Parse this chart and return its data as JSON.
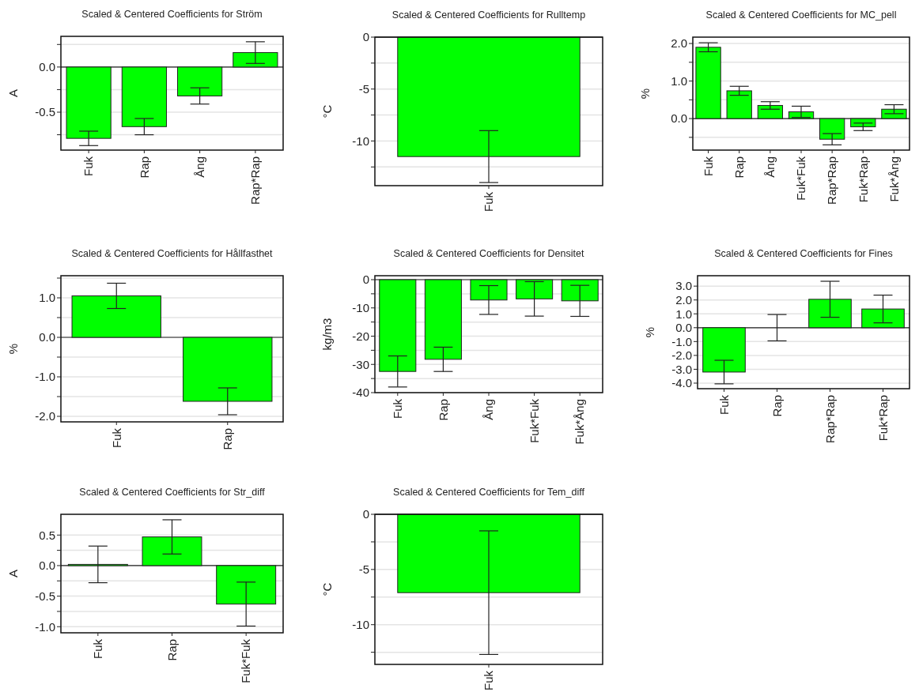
{
  "chart_data": [
    {
      "type": "bar",
      "title": "Scaled & Centered Coefficients for Ström",
      "ylabel": "A",
      "categories": [
        "Fuk",
        "Rap",
        "Ång",
        "Rap*Rap"
      ],
      "values": [
        -0.79,
        -0.66,
        -0.32,
        0.16
      ],
      "errors": [
        0.08,
        0.09,
        0.09,
        0.12
      ],
      "color": "#00ff00",
      "ylim": [
        -0.92,
        0.34
      ],
      "yticks": [
        {
          "value": 0.25,
          "label": null
        },
        {
          "value": 0,
          "label": "0.0"
        },
        {
          "value": -0.25,
          "label": null
        },
        -0.5,
        {
          "value": -0.75,
          "label": null
        }
      ],
      "grid": "y"
    },
    {
      "type": "bar",
      "title": "Scaled & Centered Coefficients for Rulltemp",
      "ylabel": "°C",
      "categories": [
        "Fuk"
      ],
      "values": [
        -11.5
      ],
      "errors": [
        2.5
      ],
      "color": "#00ff00",
      "ylim": [
        -14.3,
        0
      ],
      "yticks": [
        0,
        {
          "value": -2.5,
          "label": null
        },
        -5,
        {
          "value": -7.5,
          "label": null
        },
        -10,
        {
          "value": -12.5,
          "label": null
        }
      ],
      "grid": "y"
    },
    {
      "type": "bar",
      "title": "Scaled & Centered Coefficients for MC_pell",
      "ylabel": "%",
      "categories": [
        "Fuk",
        "Rap",
        "Ång",
        "Fuk*Fuk",
        "Rap*Rap",
        "Fuk*Rap",
        "Fuk*Ång"
      ],
      "values": [
        1.9,
        0.74,
        0.35,
        0.18,
        -0.55,
        -0.22,
        0.25
      ],
      "errors": [
        0.12,
        0.12,
        0.1,
        0.15,
        0.15,
        0.1,
        0.12
      ],
      "color": "#00ff00",
      "ylim": [
        -0.84,
        2.17
      ],
      "yticks": [
        {
          "value": 2,
          "label": "2.0"
        },
        {
          "value": 1.5,
          "label": null
        },
        {
          "value": 1,
          "label": "1.0"
        },
        {
          "value": 0.5,
          "label": null
        },
        {
          "value": 0,
          "label": "0.0"
        },
        {
          "value": -0.5,
          "label": null
        }
      ],
      "grid": "y"
    },
    {
      "type": "bar",
      "title": "Scaled & Centered Coefficients for Hållfasthet",
      "ylabel": "%",
      "categories": [
        "Fuk",
        "Rap"
      ],
      "values": [
        1.05,
        -1.62
      ],
      "errors": [
        0.32,
        0.34
      ],
      "color": "#00ff00",
      "ylim": [
        -2.14,
        1.56
      ],
      "yticks": [
        {
          "value": 1.5,
          "label": null
        },
        {
          "value": 1,
          "label": "1.0"
        },
        {
          "value": 0.5,
          "label": null
        },
        {
          "value": 0,
          "label": "0.0"
        },
        {
          "value": -0.5,
          "label": null
        },
        {
          "value": -1,
          "label": "-1.0"
        },
        {
          "value": -1.5,
          "label": null
        },
        {
          "value": -2,
          "label": "-2.0"
        }
      ],
      "grid": "y"
    },
    {
      "type": "bar",
      "title": "Scaled & Centered Coefficients for Densitet",
      "ylabel": "kg/m3",
      "categories": [
        "Fuk",
        "Rap",
        "Ång",
        "Fuk*Fuk",
        "Fuk*Ång"
      ],
      "values": [
        -32.5,
        -28.2,
        -7.2,
        -6.8,
        -7.5
      ],
      "errors": [
        5.5,
        4.3,
        5.1,
        6.1,
        5.5
      ],
      "color": "#00ff00",
      "ylim": [
        -40,
        1.4
      ],
      "yticks": [
        0,
        {
          "value": -5,
          "label": null
        },
        -10,
        {
          "value": -15,
          "label": null
        },
        -20,
        {
          "value": -25,
          "label": null
        },
        -30,
        {
          "value": -35,
          "label": null
        },
        -40
      ],
      "grid": "y"
    },
    {
      "type": "bar",
      "title": "Scaled & Centered Coefficients for Fines",
      "ylabel": "%",
      "categories": [
        "Fuk",
        "Rap",
        "Rap*Rap",
        "Fuk*Rap"
      ],
      "values": [
        -3.2,
        0,
        2.05,
        1.35
      ],
      "errors": [
        0.85,
        0.95,
        1.3,
        1.0
      ],
      "color": "#00ff00",
      "ylim": [
        -4.4,
        3.75
      ],
      "yticks": [
        {
          "value": 3,
          "label": "3.0"
        },
        {
          "value": 2,
          "label": "2.0"
        },
        {
          "value": 1,
          "label": "1.0"
        },
        {
          "value": 0,
          "label": "0.0"
        },
        {
          "value": -1,
          "label": "-1.0"
        },
        {
          "value": -2,
          "label": "-2.0"
        },
        {
          "value": -3,
          "label": "-3.0"
        },
        {
          "value": -4,
          "label": "-4.0"
        }
      ],
      "grid": "y"
    },
    {
      "type": "bar",
      "title": "Scaled & Centered Coefficients for Str_diff",
      "ylabel": "A",
      "categories": [
        "Fuk",
        "Rap",
        "Fuk*Fuk"
      ],
      "values": [
        0.02,
        0.47,
        -0.63
      ],
      "errors": [
        0.3,
        0.28,
        0.36
      ],
      "color": "#00ff00",
      "ylim": [
        -1.1,
        0.84
      ],
      "yticks": [
        0.5,
        {
          "value": 0.25,
          "label": null
        },
        {
          "value": 0,
          "label": "0.0"
        },
        {
          "value": -0.25,
          "label": null
        },
        -0.5,
        {
          "value": -0.75,
          "label": null
        },
        {
          "value": -1,
          "label": "-1.0"
        }
      ],
      "grid": "y"
    },
    {
      "type": "bar",
      "title": "Scaled & Centered Coefficients for Tem_diff",
      "ylabel": "°C",
      "categories": [
        "Fuk"
      ],
      "values": [
        -7.1
      ],
      "errors": [
        5.6
      ],
      "color": "#00ff00",
      "ylim": [
        -13.6,
        0
      ],
      "yticks": [
        0,
        {
          "value": -2.5,
          "label": null
        },
        -5,
        {
          "value": -7.5,
          "label": null
        },
        -10,
        {
          "value": -12.5,
          "label": null
        }
      ],
      "grid": "y"
    }
  ]
}
